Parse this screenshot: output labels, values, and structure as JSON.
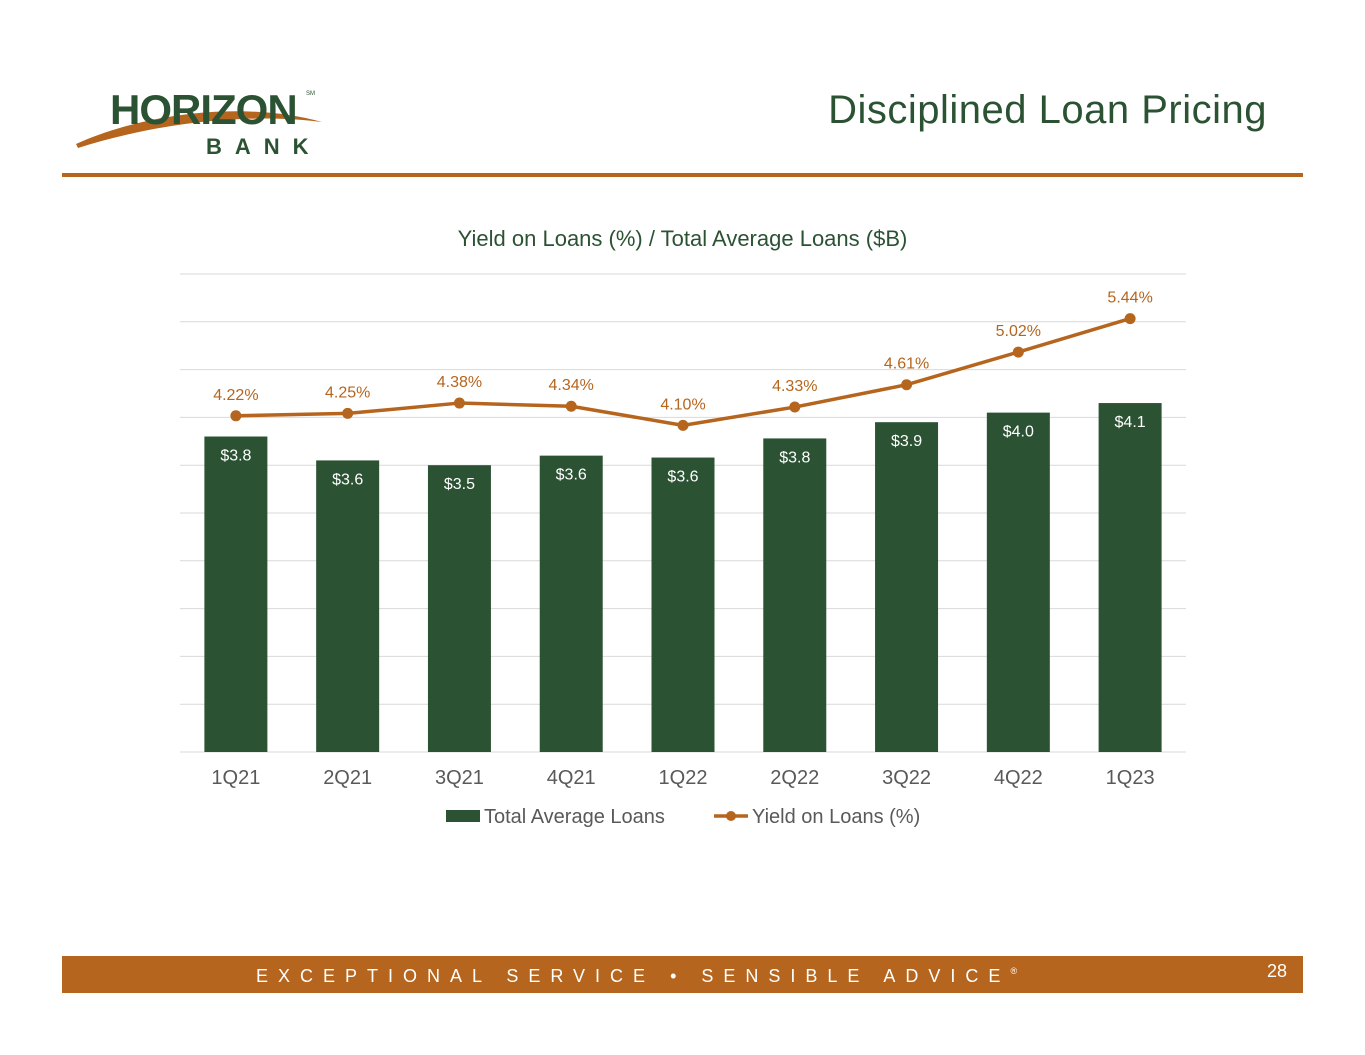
{
  "header": {
    "logo_text": "HORIZON",
    "logo_subtext": "BANK",
    "logo_mark": "SM",
    "title": "Disciplined Loan Pricing"
  },
  "colors": {
    "brand_green": "#2b5233",
    "brand_orange": "#b5651d",
    "gridline": "#d9d9d9",
    "axis_text": "#595959"
  },
  "chart_data": {
    "type": "bar",
    "title": "Yield on Loans (%) /  Total Average Loans ($B)",
    "categories": [
      "1Q21",
      "2Q21",
      "3Q21",
      "4Q21",
      "1Q22",
      "2Q22",
      "3Q22",
      "4Q22",
      "1Q23"
    ],
    "series": [
      {
        "name": "Total Average  Loans",
        "type": "bar",
        "axis": "primary",
        "values": [
          3.8,
          3.55,
          3.5,
          3.6,
          3.58,
          3.78,
          3.95,
          4.05,
          4.15
        ],
        "labels": [
          "$3.8",
          "$3.6",
          "$3.5",
          "$3.6",
          "$3.6",
          "$3.8",
          "$3.9",
          "$4.0",
          "$4.1"
        ],
        "color": "#2b5233"
      },
      {
        "name": "Yield on Loans (%)",
        "type": "line",
        "axis": "secondary",
        "values": [
          4.22,
          4.25,
          4.38,
          4.34,
          4.1,
          4.33,
          4.61,
          5.02,
          5.44
        ],
        "labels": [
          "4.22%",
          "4.25%",
          "4.38%",
          "4.34%",
          "4.10%",
          "4.33%",
          "4.61%",
          "5.02%",
          "5.44%"
        ],
        "color": "#b5651d"
      }
    ],
    "ylim": [
      0.5,
      5.5
    ],
    "y2lim": [
      0,
      6.0
    ],
    "gridlines": 10,
    "grid": true,
    "axis_tick_labels_visible": false,
    "legend_position": "bottom"
  },
  "footer": {
    "tagline": "EXCEPTIONAL SERVICE  •  SENSIBLE ADVICE",
    "registered_mark": "®",
    "page_number": "28"
  }
}
